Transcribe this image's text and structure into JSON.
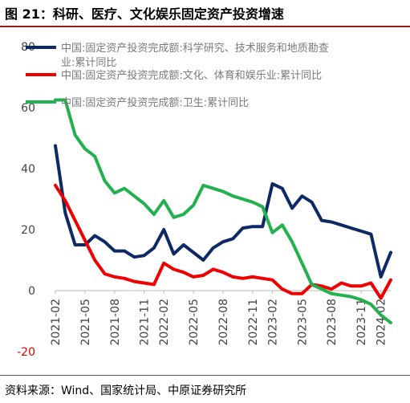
{
  "figure": {
    "title": "图 21：科研、医疗、文化娱乐固定资产投资增速",
    "source": "资料来源：Wind、国家统计局、中原证券研究所"
  },
  "chart_data": {
    "type": "line",
    "title": "",
    "xlabel": "",
    "ylabel": "",
    "ylim": [
      -20,
      80
    ],
    "yticks": [
      -20,
      0,
      20,
      40,
      60,
      80
    ],
    "x_tick_labels": [
      "2021-02",
      "2021-05",
      "2021-08",
      "2021-11",
      "2022-02",
      "2022-05",
      "2022-08",
      "2022-11",
      "2023-02",
      "2023-05",
      "2023-08",
      "2023-11",
      "2024-02"
    ],
    "x": [
      "2021-02",
      "2021-03",
      "2021-04",
      "2021-05",
      "2021-06",
      "2021-07",
      "2021-08",
      "2021-09",
      "2021-10",
      "2021-11",
      "2021-12",
      "2022-02",
      "2022-03",
      "2022-04",
      "2022-05",
      "2022-06",
      "2022-07",
      "2022-08",
      "2022-09",
      "2022-10",
      "2022-11",
      "2022-12",
      "2023-02",
      "2023-03",
      "2023-04",
      "2023-05",
      "2023-06",
      "2023-07",
      "2023-08",
      "2023-09",
      "2023-10",
      "2023-11",
      "2023-12",
      "2024-02",
      "2024-03"
    ],
    "grid": false,
    "legend_position": "top-left",
    "series": [
      {
        "name": "中国:固定资产投资完成额:科学研究、技术服务和地质勘查业:累计同比",
        "color": "#0d2a66",
        "values": [
          47.5,
          25.5,
          15,
          15,
          18,
          16,
          13,
          13,
          11,
          11.5,
          14,
          20,
          12,
          15,
          12.5,
          10,
          14,
          16,
          17,
          20.5,
          21,
          21,
          35,
          33.5,
          27,
          31,
          29,
          23,
          22.5,
          21.5,
          20.5,
          19.5,
          18.5,
          4.5,
          12.5
        ]
      },
      {
        "name": "中国:固定资产投资完成额:文化、体育和娱乐业:累计同比",
        "color": "#ee0000",
        "values": [
          34.5,
          29.5,
          23,
          16.5,
          10,
          5.5,
          4.5,
          4,
          3,
          2.5,
          2,
          9,
          7,
          6,
          4.5,
          5,
          7,
          6,
          4.5,
          4,
          4.5,
          4,
          3.5,
          0.5,
          -1,
          -1,
          2,
          1.5,
          0.5,
          2.5,
          1.5,
          1.5,
          2.5,
          -2.5,
          3.5
        ]
      },
      {
        "name": "中国:固定资产投资完成额:卫生:累计同比",
        "color": "#22b14c",
        "values": [
          62.5,
          62.5,
          51,
          46.5,
          44,
          36,
          32,
          33.5,
          31,
          28.5,
          25,
          29.5,
          24,
          25,
          28,
          34.5,
          33.5,
          32.5,
          31,
          30,
          29,
          27.5,
          19,
          21.5,
          16,
          9,
          2,
          0.5,
          -1,
          -1.5,
          -2,
          -3,
          -4.5,
          -8,
          -10.5
        ]
      }
    ]
  }
}
